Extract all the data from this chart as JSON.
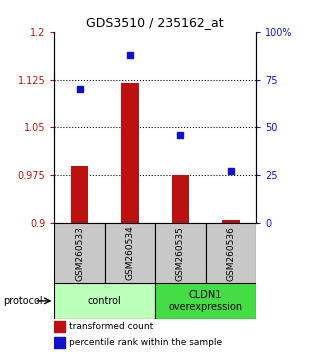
{
  "title": "GDS3510 / 235162_at",
  "samples": [
    "GSM260533",
    "GSM260534",
    "GSM260535",
    "GSM260536"
  ],
  "bar_values": [
    0.99,
    1.12,
    0.975,
    0.905
  ],
  "bar_base": 0.9,
  "bar_color": "#bb1111",
  "dot_values_pct": [
    70,
    88,
    46,
    27
  ],
  "dot_color": "#1111cc",
  "ylim_left": [
    0.9,
    1.2
  ],
  "ylim_right": [
    0,
    100
  ],
  "yticks_left": [
    0.9,
    0.975,
    1.05,
    1.125,
    1.2
  ],
  "ytick_labels_left": [
    "0.9",
    "0.975",
    "1.05",
    "1.125",
    "1.2"
  ],
  "yticks_right": [
    0,
    25,
    50,
    75,
    100
  ],
  "ytick_labels_right": [
    "0",
    "25",
    "50",
    "75",
    "100%"
  ],
  "hlines": [
    0.975,
    1.05,
    1.125
  ],
  "groups": [
    {
      "label": "control",
      "samples": [
        0,
        1
      ],
      "color": "#bbffbb"
    },
    {
      "label": "CLDN1\noverexpression",
      "samples": [
        2,
        3
      ],
      "color": "#44dd44"
    }
  ],
  "protocol_label": "protocol",
  "legend_bar_label": "transformed count",
  "legend_dot_label": "percentile rank within the sample",
  "bar_width": 0.35
}
